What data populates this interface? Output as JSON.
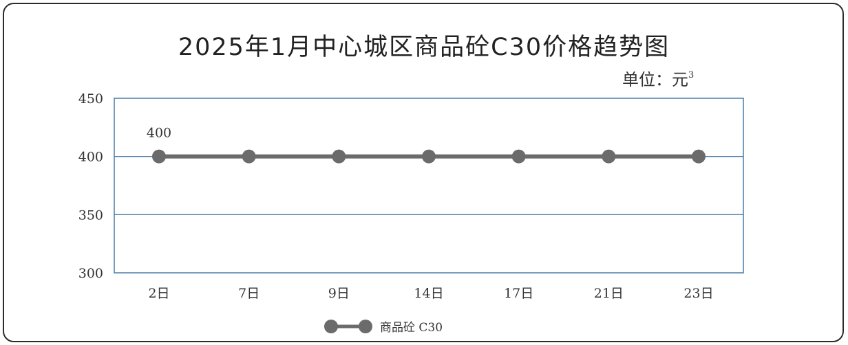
{
  "chart_data": {
    "type": "line",
    "title": "2025年1月中心城区商品砼C30价格趋势图",
    "unit_label": "单位：元",
    "unit_sup": "3",
    "categories": [
      "2日",
      "7日",
      "9日",
      "14日",
      "17日",
      "21日",
      "23日"
    ],
    "series": [
      {
        "name": "商品砼 C30",
        "values": [
          400,
          400,
          400,
          400,
          400,
          400,
          400
        ]
      }
    ],
    "ylim": [
      300,
      450
    ],
    "yticks": [
      300,
      350,
      400,
      450
    ],
    "data_labels": [
      {
        "index": 0,
        "text": "400"
      }
    ],
    "grid": true,
    "legend_position": "bottom-center",
    "colors": {
      "line": "#6b6b6b",
      "marker": "#6b6b6b",
      "axis": "#4a7ca8",
      "text": "#333333"
    }
  }
}
